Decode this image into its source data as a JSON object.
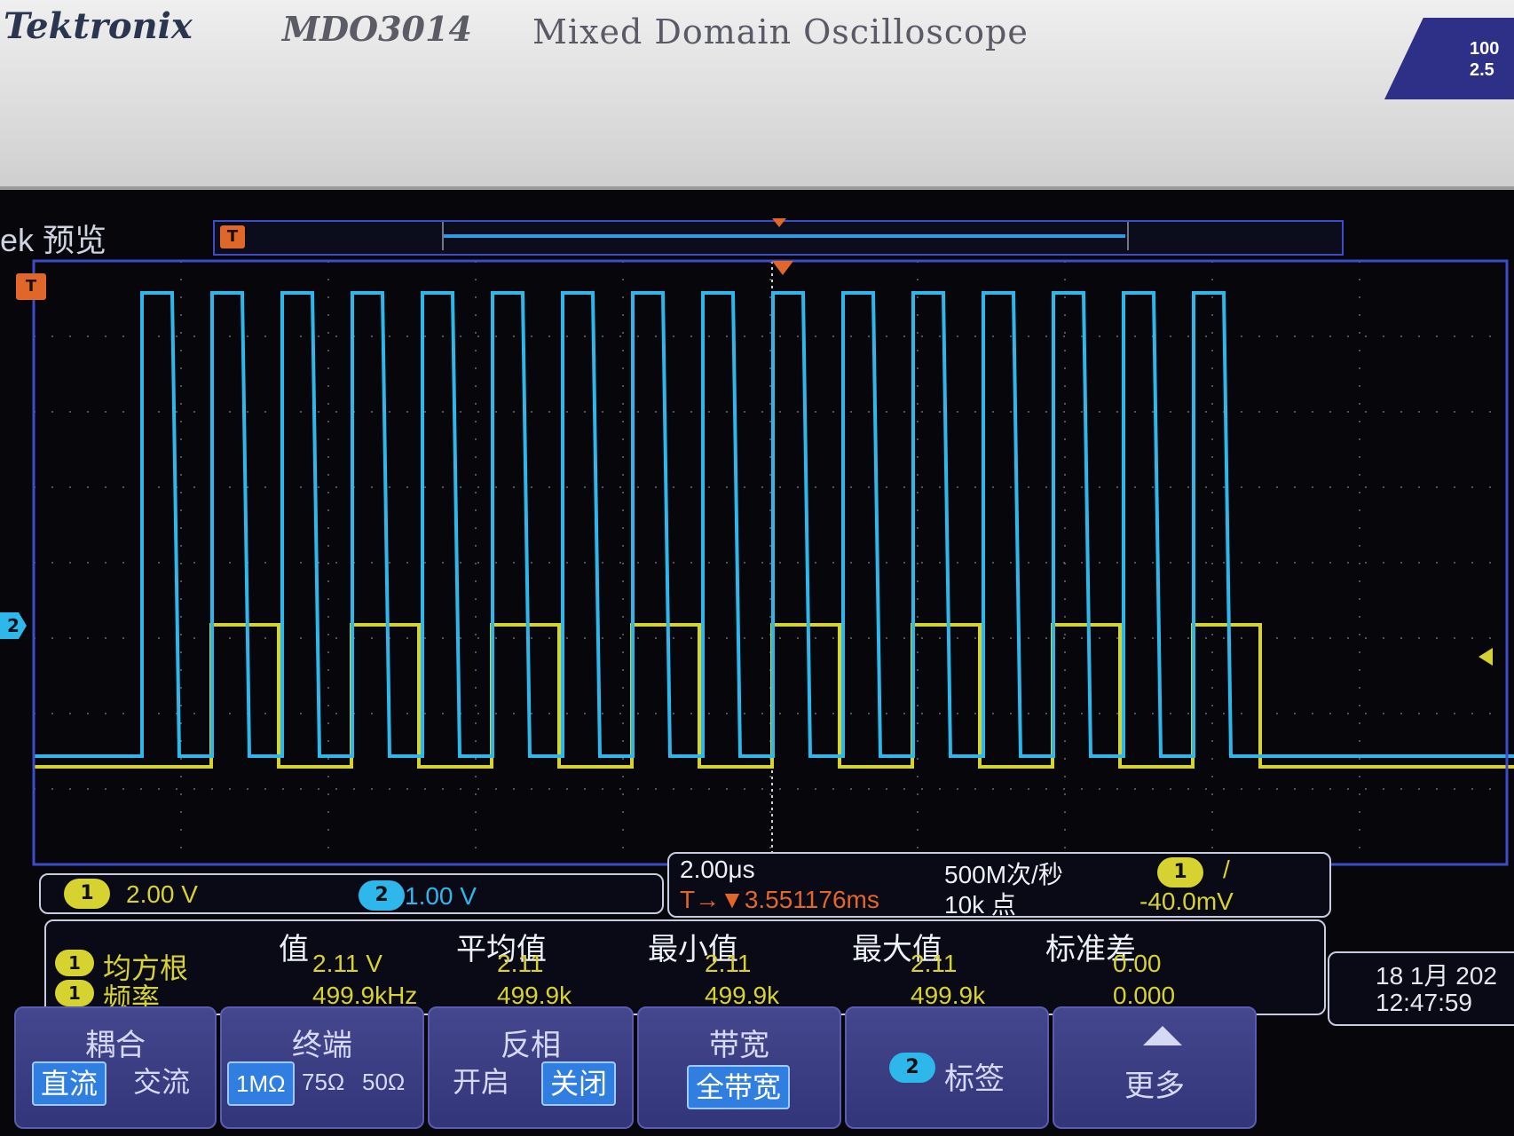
{
  "instrument": {
    "brand": "Tektronix",
    "model": "MDO3014",
    "description": "Mixed Domain Oscilloscope",
    "spec_line1": "100",
    "spec_line2": "2.5"
  },
  "preview": {
    "label": "ek 预览",
    "trigger_flag": "T"
  },
  "display": {
    "trigger_flag": "T",
    "ch2_ground_label": "2"
  },
  "channels": {
    "ch1": {
      "badge": "1",
      "scale": "2.00 V",
      "color": "#d6d230"
    },
    "ch2": {
      "badge": "2",
      "scale": "1.00 V",
      "color": "#2eb7ea"
    }
  },
  "timebase": {
    "scale": "2.00μs",
    "trigger_offset": "T→▼3.551176ms",
    "sample_rate": "500M次/秒",
    "record_length": "10k 点",
    "trigger_source": "1",
    "trigger_slope": "/",
    "trigger_level": "-40.0mV"
  },
  "measurements": {
    "headers": [
      "值",
      "平均值",
      "最小值",
      "最大值",
      "标准差"
    ],
    "rows": [
      {
        "badge": "1",
        "name": "均方根",
        "values": [
          "2.11 V",
          "2.11",
          "2.11",
          "2.11",
          "0.00"
        ]
      },
      {
        "badge": "1",
        "name": "频率",
        "values": [
          "499.9kHz",
          "499.9k",
          "499.9k",
          "499.9k",
          "0.000"
        ]
      }
    ]
  },
  "datetime": {
    "date": "18 1月 202",
    "time": "12:47:59"
  },
  "menu": {
    "coupling": {
      "title": "耦合",
      "options": [
        "直流",
        "交流"
      ],
      "selected": "直流"
    },
    "termination": {
      "title": "终端",
      "options": [
        "1MΩ",
        "75Ω",
        "50Ω"
      ],
      "selected": "1MΩ"
    },
    "invert": {
      "title": "反相",
      "options": [
        "开启",
        "关闭"
      ],
      "selected": "关闭"
    },
    "bandwidth": {
      "title": "带宽",
      "value": "全带宽"
    },
    "label": {
      "badge": "2",
      "title": "标签"
    },
    "more": {
      "title": "更多"
    }
  },
  "waveforms": {
    "ch2_pulse_count": 16,
    "ch1_segments": 8
  }
}
